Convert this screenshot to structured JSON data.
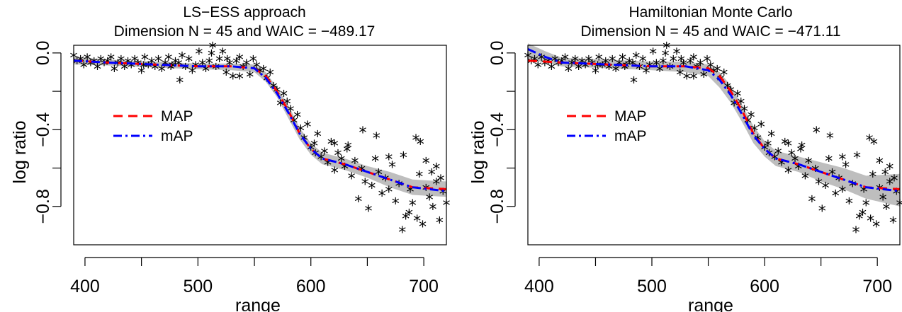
{
  "chart_data": [
    {
      "type": "scatter",
      "title": "LS−ESS approach",
      "subtitle": "Dimension N =  45 and WAIC =  −489.17",
      "xlabel": "range",
      "ylabel": "log ratio",
      "xlim": [
        390,
        720
      ],
      "ylim": [
        -1.0,
        0.04
      ],
      "xticks": [
        400,
        500,
        600,
        700
      ],
      "xtick_minor": [
        450,
        550,
        650
      ],
      "xtick_labels": [
        "400",
        "500",
        "600",
        "700"
      ],
      "yticks": [
        0.0,
        -0.4,
        -0.8
      ],
      "ytick_minor": [
        -0.2,
        -0.6
      ],
      "ytick_labels": [
        "0.0",
        "−0.4",
        "−0.8"
      ],
      "grid": false,
      "legend": "center-left",
      "colors": {
        "MAP": "#ff0000",
        "mAP": "#0000ff",
        "band": "#bebebe",
        "points": "#000000"
      },
      "series": [
        {
          "name": "MAP",
          "x": [
            390,
            420,
            460,
            500,
            530,
            550,
            560,
            570,
            580,
            590,
            600,
            610,
            630,
            650,
            670,
            690,
            720
          ],
          "values": [
            -0.04,
            -0.05,
            -0.06,
            -0.07,
            -0.07,
            -0.08,
            -0.12,
            -0.2,
            -0.3,
            -0.42,
            -0.5,
            -0.55,
            -0.58,
            -0.62,
            -0.66,
            -0.7,
            -0.71
          ]
        },
        {
          "name": "mAP",
          "x": [
            390,
            420,
            460,
            500,
            530,
            550,
            560,
            570,
            580,
            590,
            600,
            610,
            630,
            650,
            670,
            690,
            720
          ],
          "values": [
            -0.04,
            -0.05,
            -0.06,
            -0.07,
            -0.07,
            -0.08,
            -0.13,
            -0.21,
            -0.31,
            -0.42,
            -0.5,
            -0.55,
            -0.58,
            -0.62,
            -0.66,
            -0.7,
            -0.72
          ]
        }
      ],
      "band": {
        "x": [
          390,
          420,
          460,
          500,
          530,
          550,
          560,
          570,
          580,
          590,
          600,
          610,
          630,
          650,
          670,
          690,
          720
        ],
        "lower": [
          -0.06,
          -0.065,
          -0.075,
          -0.085,
          -0.09,
          -0.1,
          -0.15,
          -0.23,
          -0.34,
          -0.45,
          -0.53,
          -0.58,
          -0.61,
          -0.65,
          -0.7,
          -0.74,
          -0.75
        ],
        "upper": [
          -0.02,
          -0.035,
          -0.045,
          -0.055,
          -0.055,
          -0.06,
          -0.1,
          -0.18,
          -0.27,
          -0.39,
          -0.47,
          -0.52,
          -0.55,
          -0.59,
          -0.62,
          -0.66,
          -0.67
        ]
      },
      "points": {
        "x": [
          390,
          393,
          396,
          399,
          402,
          405,
          408,
          411,
          414,
          417,
          420,
          423,
          426,
          429,
          432,
          435,
          438,
          441,
          444,
          447,
          450,
          453,
          456,
          459,
          462,
          465,
          468,
          471,
          474,
          477,
          480,
          483,
          486,
          489,
          492,
          495,
          498,
          501,
          504,
          507,
          510,
          513,
          516,
          519,
          522,
          525,
          528,
          531,
          534,
          537,
          540,
          543,
          546,
          549,
          552,
          555,
          558,
          561,
          564,
          567,
          570,
          573,
          576,
          579,
          582,
          585,
          588,
          591,
          594,
          597,
          600,
          603,
          606,
          609,
          612,
          615,
          618,
          621,
          624,
          627,
          630,
          633,
          636,
          639,
          642,
          645,
          648,
          651,
          654,
          657,
          660,
          663,
          666,
          669,
          672,
          675,
          678,
          681,
          684,
          687,
          690,
          693,
          696,
          699,
          702,
          705,
          708,
          711,
          714,
          717,
          720,
          484,
          512,
          526,
          537,
          452,
          476,
          604,
          621,
          646,
          658,
          682,
          697,
          702,
          707,
          715,
          632,
          669,
          688,
          694,
          711
        ],
        "y": [
          -0.02,
          -0.05,
          -0.04,
          -0.07,
          -0.03,
          -0.06,
          -0.05,
          -0.08,
          -0.04,
          -0.06,
          -0.05,
          -0.03,
          -0.09,
          -0.06,
          -0.04,
          -0.08,
          -0.05,
          -0.07,
          -0.04,
          -0.06,
          -0.1,
          -0.03,
          -0.07,
          -0.05,
          -0.08,
          -0.04,
          -0.09,
          -0.06,
          -0.03,
          -0.07,
          -0.05,
          -0.06,
          -0.02,
          -0.08,
          -0.04,
          -0.1,
          -0.07,
          0.0,
          -0.06,
          -0.09,
          -0.05,
          0.03,
          -0.08,
          -0.04,
          0.0,
          -0.11,
          -0.06,
          -0.13,
          -0.05,
          -0.03,
          -0.08,
          -0.06,
          -0.12,
          -0.04,
          -0.07,
          -0.1,
          -0.09,
          -0.14,
          -0.11,
          -0.18,
          -0.2,
          -0.27,
          -0.22,
          -0.26,
          -0.3,
          -0.36,
          -0.33,
          -0.4,
          -0.45,
          -0.38,
          -0.5,
          -0.48,
          -0.43,
          -0.55,
          -0.52,
          -0.58,
          -0.47,
          -0.62,
          -0.53,
          -0.56,
          -0.6,
          -0.49,
          -0.65,
          -0.57,
          -0.77,
          -0.61,
          -0.68,
          -0.82,
          -0.7,
          -0.56,
          -0.63,
          -0.74,
          -0.66,
          -0.72,
          -0.59,
          -0.78,
          -0.69,
          -0.93,
          -0.86,
          -0.84,
          -0.79,
          -0.45,
          -0.64,
          -0.9,
          -0.71,
          -0.76,
          -0.81,
          -0.68,
          -0.88,
          -0.73,
          -0.79,
          -0.15,
          -0.01,
          -0.04,
          -0.13,
          -0.07,
          -0.08,
          -0.53,
          -0.48,
          -0.41,
          -0.44,
          -0.54,
          -0.47,
          -0.57,
          -0.63,
          -0.66,
          -0.51,
          -0.55,
          -0.72,
          -0.87,
          -0.6
        ]
      }
    },
    {
      "type": "scatter",
      "title": "Hamiltonian Monte Carlo",
      "subtitle": "Dimension N =  45 and WAIC =  −471.11",
      "xlabel": "range",
      "ylabel": "log ratio",
      "xlim": [
        390,
        720
      ],
      "ylim": [
        -1.0,
        0.04
      ],
      "xticks": [
        400,
        500,
        600,
        700
      ],
      "xtick_minor": [
        450,
        550,
        650
      ],
      "xtick_labels": [
        "400",
        "500",
        "600",
        "700"
      ],
      "yticks": [
        0.0,
        -0.4,
        -0.8
      ],
      "ytick_minor": [
        -0.2,
        -0.6
      ],
      "ytick_labels": [
        "0.0",
        "−0.4",
        "−0.8"
      ],
      "grid": false,
      "legend": "center-left",
      "colors": {
        "MAP": "#ff0000",
        "mAP": "#0000ff",
        "band": "#bebebe",
        "points": "#000000"
      },
      "series": [
        {
          "name": "MAP",
          "x": [
            390,
            420,
            460,
            500,
            530,
            550,
            560,
            570,
            580,
            590,
            600,
            610,
            630,
            650,
            670,
            690,
            720
          ],
          "values": [
            -0.04,
            -0.05,
            -0.06,
            -0.07,
            -0.07,
            -0.08,
            -0.12,
            -0.2,
            -0.3,
            -0.42,
            -0.5,
            -0.55,
            -0.58,
            -0.62,
            -0.66,
            -0.7,
            -0.71
          ]
        },
        {
          "name": "mAP",
          "x": [
            390,
            405,
            420,
            460,
            500,
            530,
            550,
            560,
            570,
            580,
            590,
            600,
            610,
            630,
            650,
            670,
            690,
            720
          ],
          "values": [
            0.02,
            -0.02,
            -0.05,
            -0.06,
            -0.07,
            -0.07,
            -0.09,
            -0.14,
            -0.22,
            -0.32,
            -0.43,
            -0.5,
            -0.55,
            -0.58,
            -0.62,
            -0.66,
            -0.7,
            -0.72
          ]
        }
      ],
      "band": {
        "x": [
          390,
          405,
          420,
          460,
          500,
          530,
          550,
          560,
          570,
          580,
          590,
          600,
          610,
          630,
          650,
          670,
          690,
          720
        ],
        "lower": [
          -0.03,
          -0.05,
          -0.07,
          -0.08,
          -0.09,
          -0.1,
          -0.12,
          -0.18,
          -0.26,
          -0.36,
          -0.47,
          -0.54,
          -0.59,
          -0.62,
          -0.67,
          -0.71,
          -0.76,
          -0.8
        ],
        "upper": [
          0.05,
          0.01,
          -0.025,
          -0.035,
          -0.045,
          -0.045,
          -0.06,
          -0.1,
          -0.17,
          -0.27,
          -0.38,
          -0.46,
          -0.51,
          -0.54,
          -0.57,
          -0.6,
          -0.64,
          -0.63
        ]
      },
      "points": {
        "x": [
          390,
          393,
          396,
          399,
          402,
          405,
          408,
          411,
          414,
          417,
          420,
          423,
          426,
          429,
          432,
          435,
          438,
          441,
          444,
          447,
          450,
          453,
          456,
          459,
          462,
          465,
          468,
          471,
          474,
          477,
          480,
          483,
          486,
          489,
          492,
          495,
          498,
          501,
          504,
          507,
          510,
          513,
          516,
          519,
          522,
          525,
          528,
          531,
          534,
          537,
          540,
          543,
          546,
          549,
          552,
          555,
          558,
          561,
          564,
          567,
          570,
          573,
          576,
          579,
          582,
          585,
          588,
          591,
          594,
          597,
          600,
          603,
          606,
          609,
          612,
          615,
          618,
          621,
          624,
          627,
          630,
          633,
          636,
          639,
          642,
          645,
          648,
          651,
          654,
          657,
          660,
          663,
          666,
          669,
          672,
          675,
          678,
          681,
          684,
          687,
          690,
          693,
          696,
          699,
          702,
          705,
          708,
          711,
          714,
          717,
          720,
          484,
          512,
          526,
          537,
          452,
          476,
          604,
          621,
          646,
          658,
          682,
          697,
          702,
          707,
          715,
          632,
          669,
          688,
          694,
          711
        ],
        "y": [
          -0.02,
          -0.05,
          -0.04,
          -0.07,
          -0.03,
          -0.06,
          -0.05,
          -0.08,
          -0.04,
          -0.06,
          -0.05,
          -0.03,
          -0.09,
          -0.06,
          -0.04,
          -0.08,
          -0.05,
          -0.07,
          -0.04,
          -0.06,
          -0.1,
          -0.03,
          -0.07,
          -0.05,
          -0.08,
          -0.04,
          -0.09,
          -0.06,
          -0.03,
          -0.07,
          -0.05,
          -0.06,
          -0.02,
          -0.08,
          -0.04,
          -0.1,
          -0.07,
          0.0,
          -0.06,
          -0.09,
          -0.05,
          0.03,
          -0.08,
          -0.04,
          0.0,
          -0.11,
          -0.06,
          -0.13,
          -0.05,
          -0.03,
          -0.08,
          -0.06,
          -0.12,
          -0.04,
          -0.07,
          -0.1,
          -0.09,
          -0.14,
          -0.11,
          -0.18,
          -0.2,
          -0.27,
          -0.22,
          -0.26,
          -0.3,
          -0.36,
          -0.33,
          -0.4,
          -0.45,
          -0.38,
          -0.5,
          -0.48,
          -0.43,
          -0.55,
          -0.52,
          -0.58,
          -0.47,
          -0.62,
          -0.53,
          -0.56,
          -0.6,
          -0.49,
          -0.65,
          -0.57,
          -0.77,
          -0.61,
          -0.68,
          -0.82,
          -0.7,
          -0.56,
          -0.63,
          -0.74,
          -0.66,
          -0.72,
          -0.59,
          -0.78,
          -0.69,
          -0.93,
          -0.86,
          -0.84,
          -0.79,
          -0.45,
          -0.64,
          -0.9,
          -0.71,
          -0.76,
          -0.81,
          -0.68,
          -0.88,
          -0.73,
          -0.79,
          -0.15,
          -0.01,
          -0.04,
          -0.13,
          -0.07,
          -0.08,
          -0.53,
          -0.48,
          -0.41,
          -0.44,
          -0.54,
          -0.47,
          -0.57,
          -0.63,
          -0.66,
          -0.51,
          -0.55,
          -0.72,
          -0.87,
          -0.6
        ]
      }
    }
  ]
}
